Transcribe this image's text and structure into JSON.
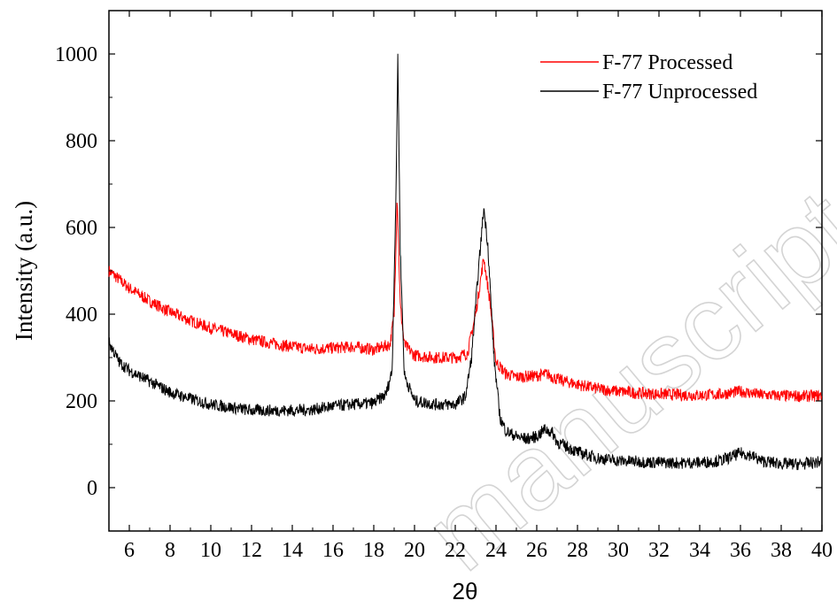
{
  "watermark": "manuscript",
  "chart_data": {
    "type": "line",
    "xlabel": "2θ",
    "ylabel": "Intensity (a.u.)",
    "xlim": [
      5,
      40
    ],
    "ylim": [
      -100,
      1100
    ],
    "xticks": [
      6,
      8,
      10,
      12,
      14,
      16,
      18,
      20,
      22,
      24,
      26,
      28,
      30,
      32,
      34,
      36,
      38,
      40
    ],
    "yticks": [
      0,
      200,
      400,
      600,
      800,
      1000
    ],
    "legend_position": "top-right",
    "series": [
      {
        "name": "F-77 Processed",
        "color": "#ff0000",
        "points": [
          [
            5.0,
            500
          ],
          [
            6.0,
            460
          ],
          [
            7.0,
            430
          ],
          [
            8.0,
            405
          ],
          [
            9.0,
            385
          ],
          [
            10.0,
            368
          ],
          [
            11.0,
            355
          ],
          [
            12.0,
            342
          ],
          [
            13.0,
            333
          ],
          [
            14.0,
            325
          ],
          [
            15.0,
            320
          ],
          [
            16.0,
            322
          ],
          [
            17.0,
            325
          ],
          [
            18.0,
            318
          ],
          [
            18.8,
            330
          ],
          [
            19.0,
            400
          ],
          [
            19.15,
            675
          ],
          [
            19.3,
            420
          ],
          [
            19.5,
            330
          ],
          [
            20.0,
            305
          ],
          [
            21.0,
            300
          ],
          [
            22.0,
            300
          ],
          [
            22.6,
            310
          ],
          [
            23.0,
            400
          ],
          [
            23.4,
            530
          ],
          [
            23.7,
            430
          ],
          [
            24.0,
            290
          ],
          [
            24.5,
            262
          ],
          [
            25.0,
            255
          ],
          [
            26.0,
            258
          ],
          [
            26.5,
            262
          ],
          [
            27.0,
            250
          ],
          [
            28.0,
            238
          ],
          [
            29.0,
            228
          ],
          [
            30.0,
            222
          ],
          [
            31.0,
            218
          ],
          [
            32.0,
            216
          ],
          [
            33.0,
            214
          ],
          [
            34.0,
            213
          ],
          [
            35.0,
            215
          ],
          [
            36.0,
            222
          ],
          [
            36.5,
            218
          ],
          [
            37.0,
            214
          ],
          [
            38.0,
            212
          ],
          [
            39.0,
            211
          ],
          [
            40.0,
            212
          ]
        ]
      },
      {
        "name": "F-77 Unprocessed",
        "color": "#000000",
        "points": [
          [
            5.0,
            335
          ],
          [
            5.5,
            290
          ],
          [
            6.0,
            270
          ],
          [
            7.0,
            245
          ],
          [
            8.0,
            220
          ],
          [
            9.0,
            205
          ],
          [
            10.0,
            192
          ],
          [
            11.0,
            185
          ],
          [
            12.0,
            178
          ],
          [
            13.0,
            178
          ],
          [
            14.0,
            178
          ],
          [
            15.0,
            180
          ],
          [
            16.0,
            188
          ],
          [
            17.0,
            192
          ],
          [
            18.0,
            195
          ],
          [
            18.6,
            215
          ],
          [
            18.9,
            270
          ],
          [
            19.1,
            700
          ],
          [
            19.18,
            1000
          ],
          [
            19.3,
            550
          ],
          [
            19.5,
            260
          ],
          [
            20.0,
            200
          ],
          [
            21.0,
            192
          ],
          [
            22.0,
            192
          ],
          [
            22.5,
            210
          ],
          [
            22.8,
            300
          ],
          [
            23.1,
            480
          ],
          [
            23.4,
            645
          ],
          [
            23.6,
            560
          ],
          [
            23.9,
            300
          ],
          [
            24.2,
            160
          ],
          [
            24.5,
            130
          ],
          [
            25.0,
            118
          ],
          [
            25.5,
            112
          ],
          [
            26.0,
            118
          ],
          [
            26.4,
            135
          ],
          [
            26.8,
            125
          ],
          [
            27.0,
            105
          ],
          [
            28.0,
            82
          ],
          [
            29.0,
            68
          ],
          [
            30.0,
            62
          ],
          [
            31.0,
            60
          ],
          [
            32.0,
            58
          ],
          [
            33.0,
            57
          ],
          [
            34.0,
            58
          ],
          [
            35.0,
            62
          ],
          [
            35.5,
            70
          ],
          [
            36.0,
            80
          ],
          [
            36.5,
            75
          ],
          [
            37.0,
            62
          ],
          [
            38.0,
            55
          ],
          [
            39.0,
            54
          ],
          [
            40.0,
            60
          ]
        ]
      }
    ]
  }
}
